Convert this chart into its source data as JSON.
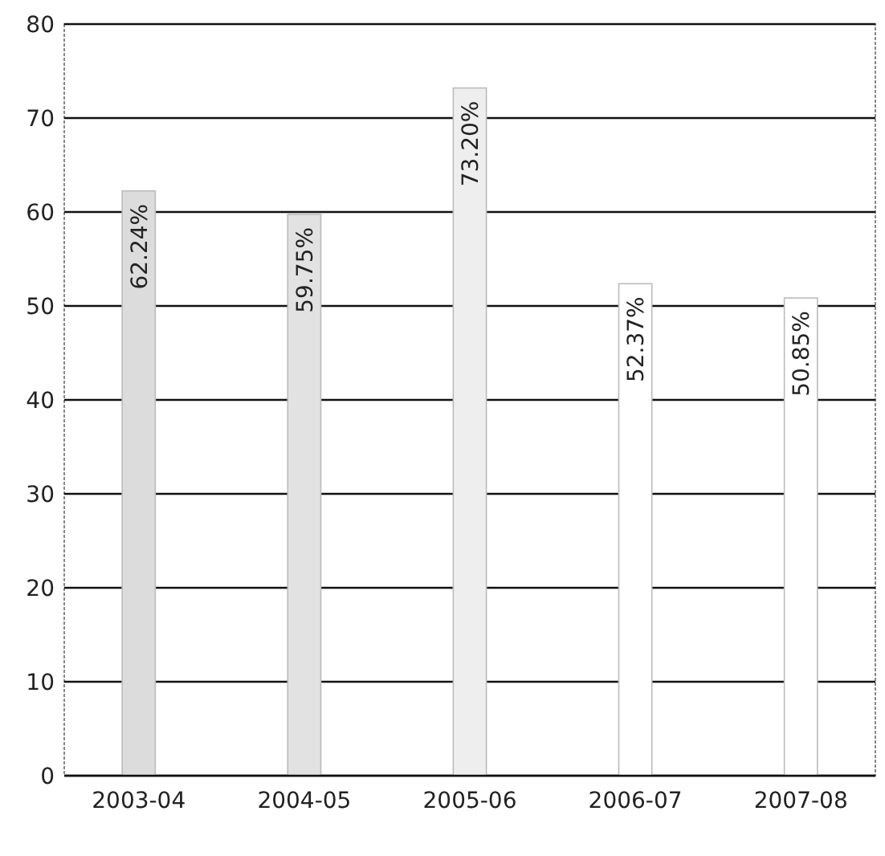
{
  "chart_data": {
    "type": "bar",
    "categories": [
      "2003-04",
      "2004-05",
      "2005-06",
      "2006-07",
      "2007-08"
    ],
    "values": [
      62.24,
      59.75,
      73.2,
      52.37,
      50.85
    ],
    "colors": [
      "#dcdcdc",
      "#e2e2e2",
      "#eeeeee",
      "#ffffff",
      "#ffffff"
    ],
    "value_labels": [
      "62.24%",
      "59.75%",
      "73.20%",
      "52.37%",
      "50.85%"
    ],
    "ylim": [
      0,
      80
    ],
    "yticks": [
      0,
      10,
      20,
      30,
      40,
      50,
      60,
      70,
      80
    ],
    "grid": "y"
  }
}
